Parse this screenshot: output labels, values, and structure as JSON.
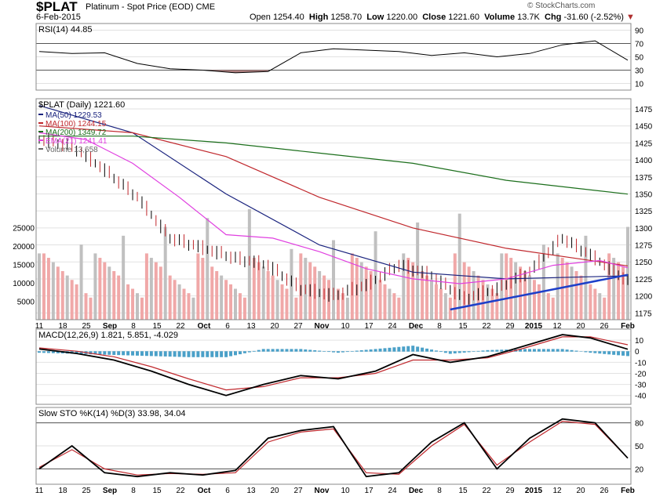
{
  "header": {
    "symbol": "$PLAT",
    "description": "Platinum - Spot Price (EOD)",
    "exchange": "CME",
    "date": "6-Feb-2015",
    "logo": "© StockCharts.com",
    "open_label": "Open",
    "open": "1254.40",
    "high_label": "High",
    "high": "1258.70",
    "low_label": "Low",
    "low": "1220.00",
    "close_label": "Close",
    "close": "1221.60",
    "volume_label": "Volume",
    "volume": "13.7K",
    "chg_label": "Chg",
    "chg": "-31.60 (-2.52%)",
    "chg_arrow": "▼"
  },
  "colors": {
    "ma50": "#1a237e",
    "ma100": "#c0282d",
    "ma200": "#1b6e1b",
    "ema21": "#e040e0",
    "trendline": "#1d3fc9",
    "rsi_oversold_fill": "#b08080",
    "macd_hist": "#4aa0c8",
    "volume_down": "#f0a8a8",
    "volume_up": "#c0c0c0",
    "candle_down": "#c0282d"
  },
  "chart_data": [
    {
      "type": "line",
      "title": "RSI(14) 44.85",
      "y_ticks": [
        10,
        30,
        50,
        70,
        90
      ],
      "ylim": [
        0,
        100
      ],
      "levels": [
        30,
        70
      ],
      "x_index": [
        0,
        7,
        14,
        21,
        28,
        35,
        42,
        49,
        56,
        63,
        70,
        77,
        84,
        91,
        98,
        105,
        112,
        119,
        126
      ],
      "values": [
        58,
        55,
        56,
        40,
        32,
        30,
        26,
        28,
        56,
        62,
        60,
        58,
        52,
        56,
        50,
        55,
        68,
        74,
        45
      ]
    },
    {
      "type": "line",
      "title": "$PLAT (Daily) 1221.60",
      "legend": [
        "MA(50) 1229.53",
        "MA(100) 1244.15",
        "MA(200) 1349.72",
        "EMA(21) 1241.41",
        "Volume 13,658"
      ],
      "x_tick_labels": [
        "11",
        "18",
        "25",
        "Sep",
        "8",
        "15",
        "22",
        "Oct",
        "6",
        "13",
        "20",
        "27",
        "Nov",
        "10",
        "17",
        "24",
        "Dec",
        "8",
        "15",
        "22",
        "29",
        "2015",
        "12",
        "20",
        "26",
        "Feb"
      ],
      "y_ticks": [
        1175,
        1200,
        1225,
        1250,
        1275,
        1300,
        1325,
        1350,
        1375,
        1400,
        1425,
        1450,
        1475
      ],
      "ylim": [
        1165,
        1490
      ],
      "volume_ticks": [
        5000,
        10000,
        15000,
        20000,
        25000
      ],
      "price_close": {
        "x_index": [
          0,
          7,
          14,
          21,
          28,
          35,
          42,
          49,
          56,
          63,
          70,
          77,
          84,
          91,
          98,
          105,
          112,
          119,
          126
        ],
        "values": [
          1430,
          1420,
          1385,
          1345,
          1285,
          1270,
          1255,
          1245,
          1210,
          1200,
          1215,
          1245,
          1230,
          1195,
          1210,
          1235,
          1285,
          1255,
          1222
        ]
      },
      "series": [
        {
          "name": "MA(50)",
          "x_index": [
            0,
            20,
            40,
            60,
            80,
            100,
            126
          ],
          "values": [
            1480,
            1440,
            1350,
            1275,
            1235,
            1225,
            1229.53
          ]
        },
        {
          "name": "MA(100)",
          "x_index": [
            0,
            20,
            40,
            60,
            80,
            100,
            126
          ],
          "values": [
            1450,
            1440,
            1405,
            1345,
            1300,
            1270,
            1244.15
          ]
        },
        {
          "name": "MA(200)",
          "x_index": [
            0,
            20,
            40,
            60,
            80,
            100,
            126
          ],
          "values": [
            1435,
            1435,
            1425,
            1410,
            1395,
            1370,
            1349.72
          ]
        },
        {
          "name": "EMA(21)",
          "x_index": [
            0,
            10,
            20,
            30,
            40,
            50,
            60,
            70,
            80,
            90,
            100,
            110,
            120,
            126
          ],
          "values": [
            1440,
            1430,
            1395,
            1345,
            1290,
            1285,
            1265,
            1240,
            1225,
            1218,
            1225,
            1245,
            1252,
            1241.41
          ]
        }
      ],
      "trendline": {
        "x_index": [
          88,
          126
        ],
        "values": [
          1180,
          1231
        ]
      }
    },
    {
      "type": "line",
      "title": "MACD(12,26,9) 1.821, 5.851, -4.029",
      "y_ticks": [
        -40,
        -30,
        -20,
        -10,
        0,
        10
      ],
      "ylim": [
        -48,
        20
      ],
      "x_index": [
        0,
        8,
        16,
        24,
        32,
        40,
        48,
        56,
        64,
        72,
        80,
        88,
        96,
        104,
        112,
        118,
        126
      ],
      "macd": [
        2,
        -2,
        -8,
        -18,
        -30,
        -40,
        -30,
        -22,
        -25,
        -18,
        -3,
        -10,
        -5,
        5,
        15,
        12,
        1.821
      ],
      "signal": [
        3,
        0,
        -5,
        -14,
        -25,
        -35,
        -32,
        -24,
        -24,
        -20,
        -8,
        -8,
        -6,
        3,
        13,
        13,
        5.851
      ]
    },
    {
      "type": "line",
      "title": "Slow STO %K(14) %D(3) 33.98, 34.04",
      "y_ticks": [
        20,
        50,
        80
      ],
      "ylim": [
        0,
        100
      ],
      "levels": [
        20,
        80
      ],
      "x_index": [
        0,
        7,
        14,
        21,
        28,
        35,
        42,
        49,
        56,
        63,
        70,
        77,
        84,
        91,
        98,
        105,
        112,
        119,
        126
      ],
      "k": [
        20,
        50,
        15,
        10,
        15,
        12,
        18,
        60,
        70,
        75,
        10,
        15,
        55,
        80,
        20,
        60,
        85,
        80,
        33.98
      ],
      "d": [
        22,
        45,
        20,
        12,
        14,
        13,
        15,
        55,
        68,
        72,
        15,
        13,
        50,
        78,
        25,
        55,
        82,
        78,
        34.04
      ]
    }
  ]
}
